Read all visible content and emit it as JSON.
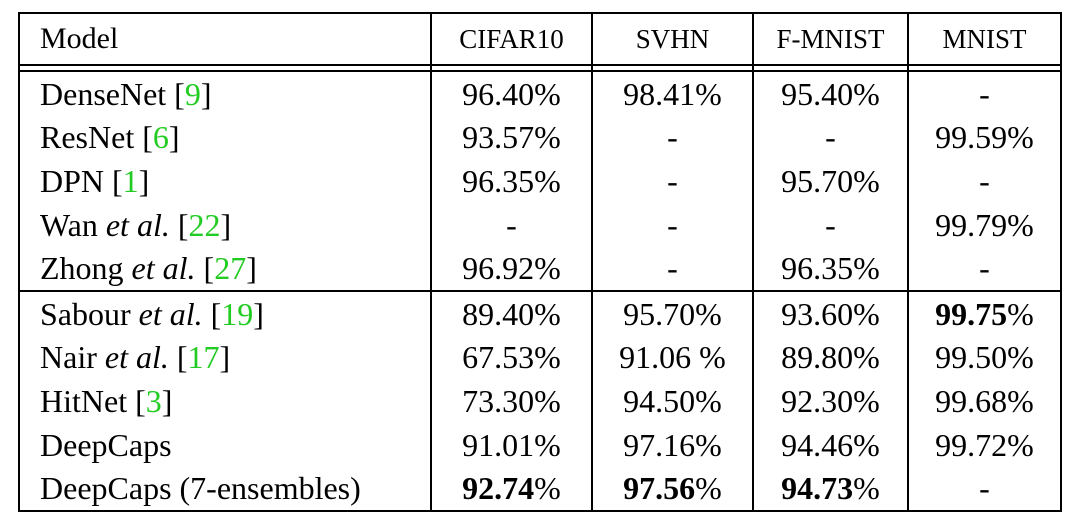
{
  "header": {
    "model": "Model",
    "cifar10": "CIFAR10",
    "svhn": "SVHN",
    "fmnist": "F-MNIST",
    "mnist": "MNIST"
  },
  "rows": [
    {
      "name": "DenseNet",
      "etal": "",
      "ref": "9",
      "cifar10": "96.40%",
      "svhn": "98.41%",
      "fmnist": "95.40%",
      "mnist": "-"
    },
    {
      "name": "ResNet",
      "etal": "",
      "ref": "6",
      "cifar10": "93.57%",
      "svhn": "-",
      "fmnist": "-",
      "mnist": "99.59%"
    },
    {
      "name": "DPN",
      "etal": "",
      "ref": "1",
      "cifar10": "96.35%",
      "svhn": "-",
      "fmnist": "95.70%",
      "mnist": "-"
    },
    {
      "name": "Wan",
      "etal": "et al.",
      "ref": "22",
      "cifar10": "-",
      "svhn": "-",
      "fmnist": "-",
      "mnist": "99.79%"
    },
    {
      "name": "Zhong",
      "etal": "et al.",
      "ref": "27",
      "cifar10": "96.92%",
      "svhn": "-",
      "fmnist": "96.35%",
      "mnist": "-"
    },
    {
      "name": "Sabour",
      "etal": "et al.",
      "ref": "19",
      "cifar10": "89.40%",
      "svhn": "95.70%",
      "fmnist": "93.60%",
      "mnist_bold": "99.75",
      "mnist_suffix": "%"
    },
    {
      "name": "Nair",
      "etal": "et al.",
      "ref": "17",
      "cifar10": "67.53%",
      "svhn": "91.06 %",
      "fmnist": "89.80%",
      "mnist": "99.50%"
    },
    {
      "name": "HitNet",
      "etal": "",
      "ref": "3",
      "cifar10": "73.30%",
      "svhn": "94.50%",
      "fmnist": "92.30%",
      "mnist": "99.68%"
    },
    {
      "name": "DeepCaps",
      "etal": "",
      "ref": "",
      "cifar10": "91.01%",
      "svhn": "97.16%",
      "fmnist": "94.46%",
      "mnist": "99.72%"
    },
    {
      "name": "DeepCaps (7-ensembles)",
      "etal": "",
      "ref": "",
      "cifar10_bold": "92.74",
      "cifar10_suffix": "%",
      "svhn_bold": "97.56",
      "svhn_suffix": "%",
      "fmnist_bold": "94.73",
      "fmnist_suffix": "%",
      "mnist": "-"
    }
  ],
  "colors": {
    "ref": "#22cc22",
    "text": "#000000"
  }
}
